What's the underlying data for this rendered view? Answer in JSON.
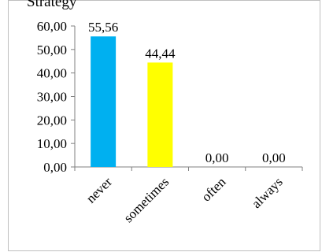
{
  "chart_data": {
    "type": "bar",
    "title": "Strategy",
    "categories": [
      "never",
      "sometimes",
      "often",
      "always"
    ],
    "values": [
      55.56,
      44.44,
      0.0,
      0.0
    ],
    "value_labels": [
      "55,56",
      "44,44",
      "0,00",
      "0,00"
    ],
    "colors": [
      "#00B0F0",
      "#FFFF00",
      "#00B0F0",
      "#00B0F0"
    ],
    "ylim": [
      0,
      60
    ],
    "yticks": [
      0,
      10,
      20,
      30,
      40,
      50,
      60
    ],
    "ytick_labels": [
      "0,00",
      "10,00",
      "20,00",
      "30,00",
      "40,00",
      "50,00",
      "60,00"
    ],
    "grid": false,
    "legend": "none"
  }
}
